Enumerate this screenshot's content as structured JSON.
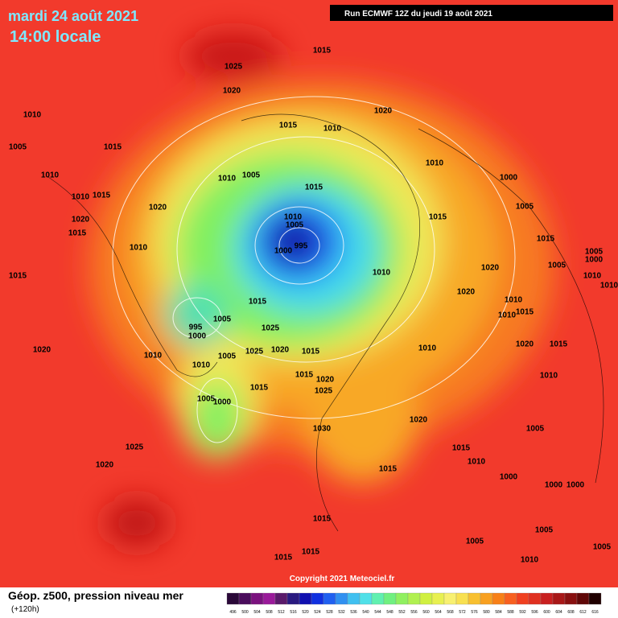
{
  "header": {
    "date": "mardi 24 août 2021",
    "time": "14:00 locale",
    "run": "Run ECMWF 12Z du jeudi 19 août 2021"
  },
  "copyright": "Copyright 2021 Meteociel.fr",
  "legend": {
    "title": "Géop. z500, pression niveau mer",
    "lead": "(+120h)",
    "values": [
      496,
      500,
      504,
      508,
      512,
      516,
      520,
      524,
      528,
      532,
      536,
      540,
      544,
      548,
      552,
      556,
      560,
      564,
      568,
      572,
      576,
      580,
      584,
      588,
      592,
      596,
      600,
      604,
      608,
      612,
      616
    ],
    "colors": [
      "#2a0838",
      "#4a0c5c",
      "#7a127e",
      "#9a1a9a",
      "#5a1a6a",
      "#2a1a80",
      "#1010b0",
      "#1030e0",
      "#2060f0",
      "#3090f0",
      "#40c0f0",
      "#50e0e8",
      "#60f0b0",
      "#70f080",
      "#90f060",
      "#b0f050",
      "#d0f040",
      "#e8f050",
      "#f8f070",
      "#f8e050",
      "#f8c030",
      "#f8a020",
      "#f88018",
      "#f86020",
      "#f04020",
      "#e03020",
      "#c82020",
      "#a81818",
      "#881010",
      "#600808",
      "#200000"
    ]
  },
  "isobar_labels": [
    1015,
    1025,
    1020,
    1010,
    1005,
    1015,
    1015,
    1010,
    1020,
    1010,
    1000,
    1010,
    1015,
    1010,
    1020,
    1010,
    1005,
    1015,
    1005,
    1015,
    1020,
    1015,
    1010,
    1010,
    1005,
    995,
    1000,
    1015,
    1005,
    1000,
    1010,
    1020,
    1005,
    1010,
    1010,
    1015,
    1020,
    1015,
    1010,
    1015,
    1010,
    1005,
    995,
    1000,
    1025,
    1020,
    1010,
    1005,
    1025,
    1020,
    1015,
    1010,
    1020,
    1015,
    1010,
    1015,
    1020,
    1025,
    1015,
    1010,
    1005,
    1000,
    1020,
    1030,
    1005,
    1025,
    1015,
    1010,
    1020,
    1015,
    1000,
    1000,
    1000,
    1015,
    1005,
    1005,
    1015,
    1015,
    1010,
    1005
  ]
}
